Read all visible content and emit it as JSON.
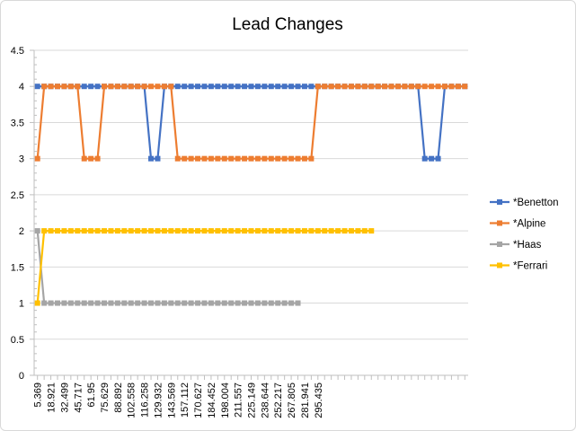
{
  "chart_data": {
    "type": "line",
    "title": "Lead Changes",
    "xlabel": "",
    "ylabel": "",
    "ylim": [
      0,
      4.5
    ],
    "y_ticks": [
      "0",
      "0.5",
      "1",
      "1.5",
      "2",
      "2.5",
      "3",
      "3.5",
      "4",
      "4.5"
    ],
    "x_tick_labels": [
      "5.369",
      "18.921",
      "32.499",
      "45.717",
      "61.95",
      "75.629",
      "88.892",
      "102.558",
      "116.258",
      "129.932",
      "143.569",
      "157.112",
      "170.627",
      "184.452",
      "198.004",
      "211.557",
      "225.149",
      "238.644",
      "252.217",
      "267.805",
      "281.941",
      "295.435"
    ],
    "x_tick_every": 2,
    "num_points": 65,
    "grid": "horizontal",
    "legend_position": "right",
    "series": [
      {
        "name": "*Benetton",
        "color": "#4472c4",
        "values": [
          4,
          4,
          4,
          4,
          4,
          4,
          4,
          4,
          4,
          4,
          4,
          4,
          4,
          4,
          4,
          4,
          4,
          3,
          3,
          4,
          4,
          4,
          4,
          4,
          4,
          4,
          4,
          4,
          4,
          4,
          4,
          4,
          4,
          4,
          4,
          4,
          4,
          4,
          4,
          4,
          4,
          4,
          4,
          4,
          4,
          4,
          4,
          4,
          4,
          4,
          4,
          4,
          4,
          4,
          4,
          4,
          4,
          4,
          3,
          3,
          3,
          4,
          4,
          4,
          4
        ]
      },
      {
        "name": "*Alpine",
        "color": "#ed7d31",
        "values": [
          3,
          4,
          4,
          4,
          4,
          4,
          4,
          3,
          3,
          3,
          4,
          4,
          4,
          4,
          4,
          4,
          4,
          4,
          4,
          4,
          4,
          3,
          3,
          3,
          3,
          3,
          3,
          3,
          3,
          3,
          3,
          3,
          3,
          3,
          3,
          3,
          3,
          3,
          3,
          3,
          3,
          3,
          4,
          4,
          4,
          4,
          4,
          4,
          4,
          4,
          4,
          4,
          4,
          4,
          4,
          4,
          4,
          4,
          4,
          4,
          4,
          4,
          4,
          4,
          4
        ]
      },
      {
        "name": "*Haas",
        "color": "#a5a5a5",
        "values": [
          2,
          1,
          1,
          1,
          1,
          1,
          1,
          1,
          1,
          1,
          1,
          1,
          1,
          1,
          1,
          1,
          1,
          1,
          1,
          1,
          1,
          1,
          1,
          1,
          1,
          1,
          1,
          1,
          1,
          1,
          1,
          1,
          1,
          1,
          1,
          1,
          1,
          1,
          1,
          1
        ]
      },
      {
        "name": "*Ferrari",
        "color": "#ffc000",
        "values": [
          1,
          2,
          2,
          2,
          2,
          2,
          2,
          2,
          2,
          2,
          2,
          2,
          2,
          2,
          2,
          2,
          2,
          2,
          2,
          2,
          2,
          2,
          2,
          2,
          2,
          2,
          2,
          2,
          2,
          2,
          2,
          2,
          2,
          2,
          2,
          2,
          2,
          2,
          2,
          2,
          2,
          2,
          2,
          2,
          2,
          2,
          2,
          2,
          2,
          2,
          2
        ]
      }
    ]
  }
}
